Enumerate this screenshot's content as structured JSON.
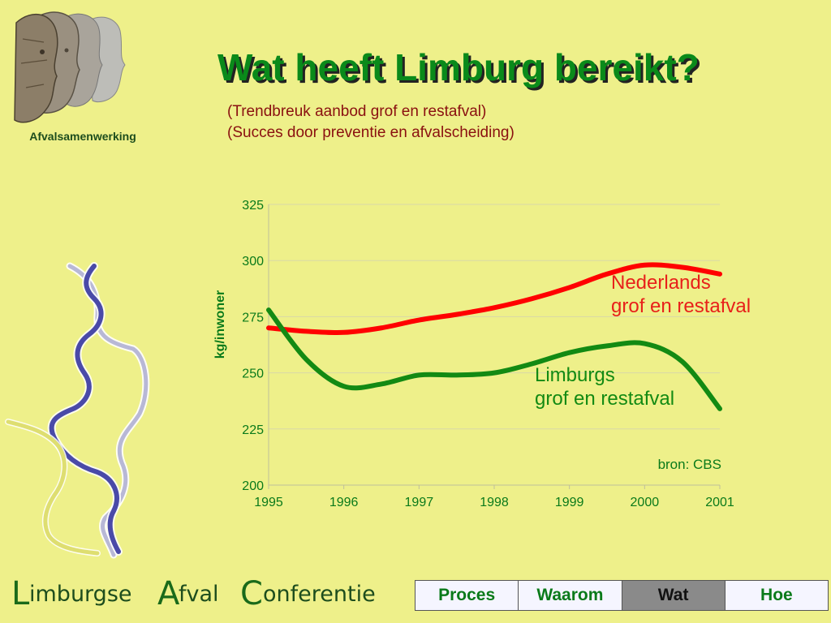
{
  "logo": {
    "caption": "Afvalsamenwerking"
  },
  "title": "Wat heeft Limburg bereikt?",
  "subtitles": [
    "(Trendbreuk aanbod grof en restafval)",
    "(Succes door preventie en afvalscheiding)"
  ],
  "brand": {
    "word1": "Limburgse",
    "word2": "Afval",
    "word3": "Conferentie"
  },
  "nav": {
    "tabs": [
      "Proces",
      "Waarom",
      "Wat",
      "Hoe"
    ],
    "active": "Wat"
  },
  "colors": {
    "background": "#eef08a",
    "title_green": "#0a8a1a",
    "nederlands_series": "#ff0000",
    "limburgs_series": "#138a13"
  },
  "chart_data": {
    "type": "line",
    "title": "",
    "xlabel": "",
    "ylabel": "kg/inwoner",
    "x": [
      1995,
      1995.5,
      1996,
      1996.5,
      1997,
      1997.5,
      1998,
      1998.5,
      1999,
      1999.5,
      2000,
      2000.5,
      2001
    ],
    "x_ticks": [
      "1995",
      "1996",
      "1997",
      "1998",
      "1999",
      "2000",
      "2001"
    ],
    "y_ticks": [
      "200",
      "225",
      "250",
      "275",
      "300",
      "325"
    ],
    "xlim": [
      1995,
      2001
    ],
    "ylim": [
      200,
      325
    ],
    "grid": "horizontal",
    "series": [
      {
        "name": "Nederlands grof en restafval",
        "label_lines": [
          "Nederlands",
          "grof en restafval"
        ],
        "color": "#ff0000",
        "values": [
          270,
          268.5,
          268,
          270,
          273.5,
          276,
          279,
          283,
          288,
          294,
          298,
          297,
          294
        ]
      },
      {
        "name": "Limburgs grof en restafval",
        "label_lines": [
          "Limburgs",
          "grof en restafval"
        ],
        "color": "#138a13",
        "values": [
          278,
          256,
          244,
          245,
          249,
          249,
          250,
          254,
          259,
          262,
          263,
          255,
          234
        ]
      }
    ],
    "annotations": [
      "bron: CBS"
    ]
  }
}
